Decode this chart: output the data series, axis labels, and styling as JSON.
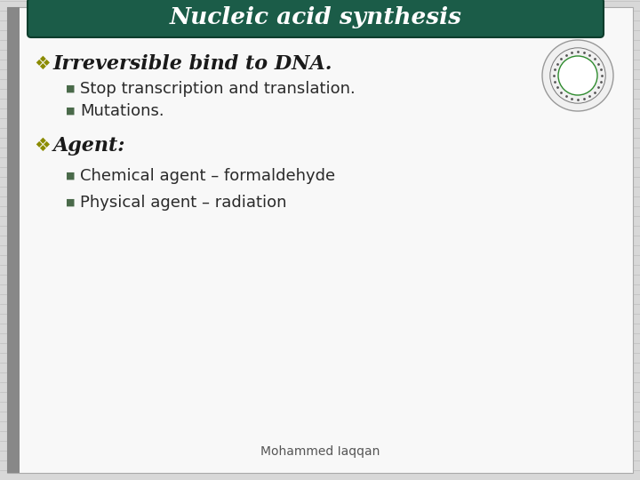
{
  "title": "Nucleic acid synthesis",
  "title_bg_color": "#1b5c48",
  "title_text_color": "#ffffff",
  "slide_bg_color": "#d8d8d8",
  "content_bg_color": "#f8f8f8",
  "bullet1_text": "Irreversible bind to DNA.",
  "bullet1_color": "#1a1a1a",
  "sub_bullet_color": "#2a2a2a",
  "bullet_marker_color": "#8b8b00",
  "sub_marker_color": "#4a6a4a",
  "sub1_1": "Stop transcription and translation.",
  "sub1_2": "Mutations.",
  "bullet2_text": "Agent:",
  "sub2_1": "Chemical agent – formaldehyde",
  "sub2_2": "Physical agent – radiation",
  "footer": "Mohammed Iaqqan",
  "stripe_color": "#bbbbbb",
  "left_bar_color": "#888888",
  "border_color": "#aaaaaa"
}
